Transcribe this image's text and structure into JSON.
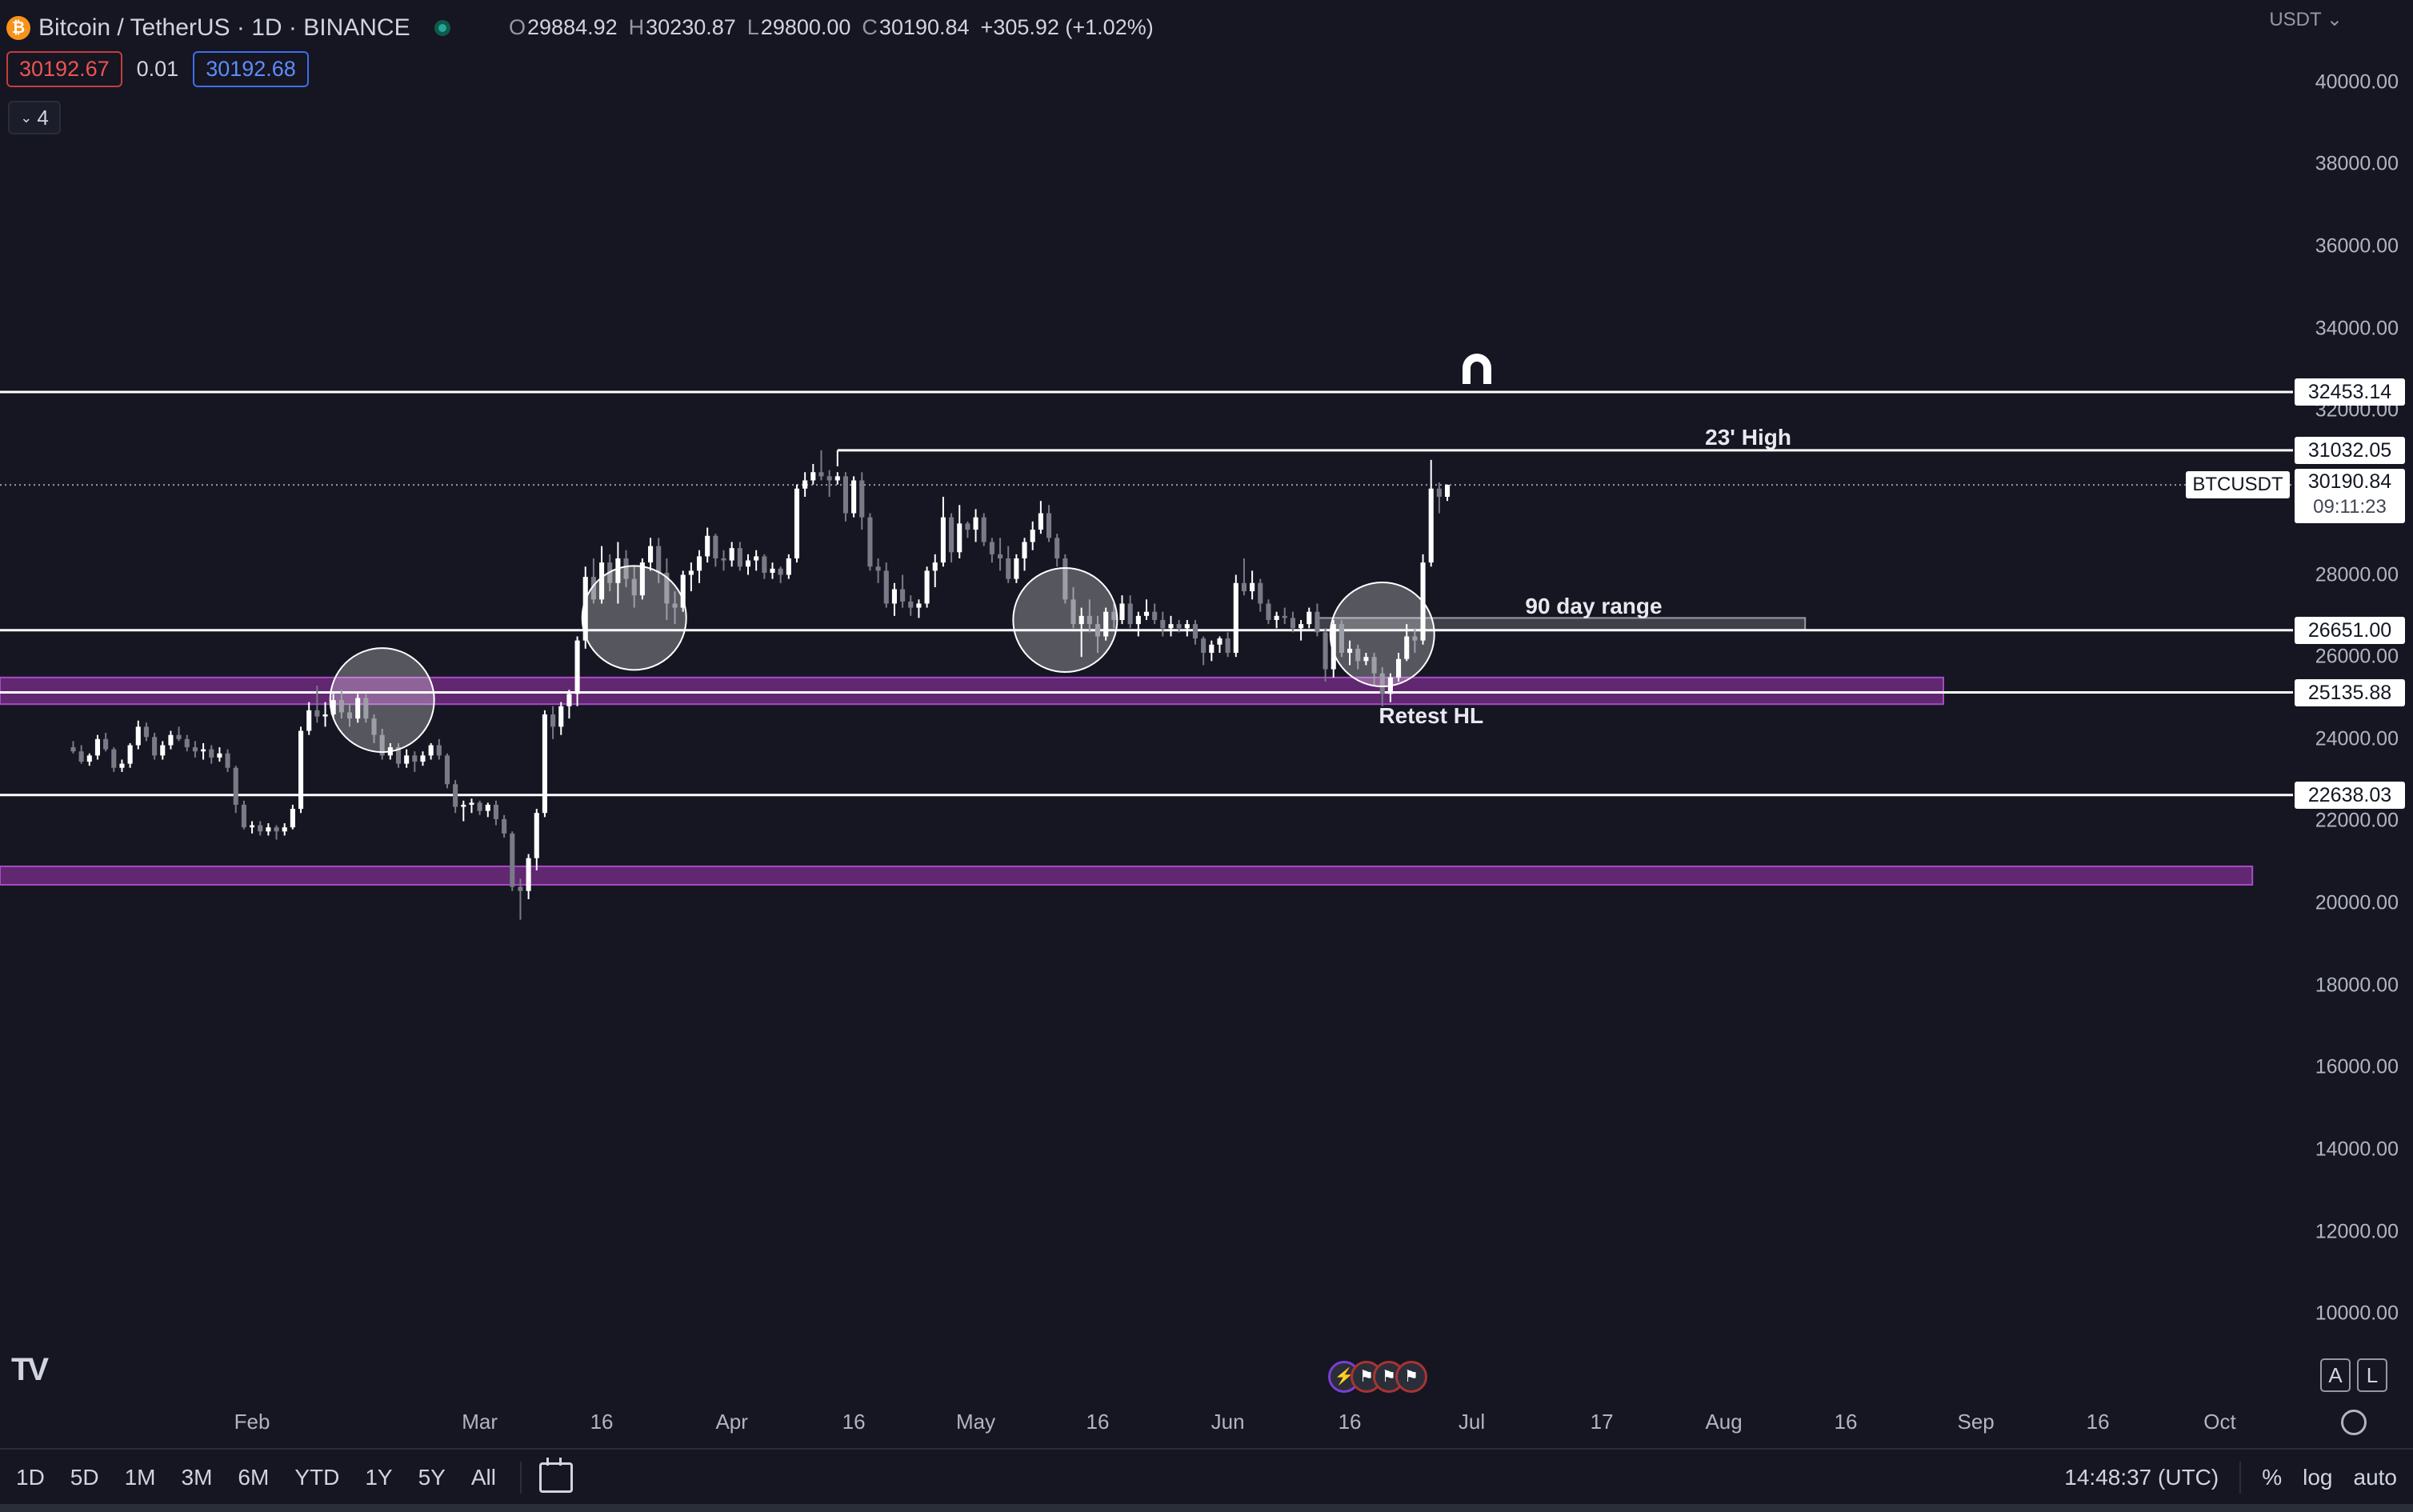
{
  "header": {
    "symbol_title": "Bitcoin / TetherUS · 1D · BINANCE",
    "coin_icon": "bitcoin-icon",
    "ohlc": [
      {
        "k": "O",
        "v": "29884.92"
      },
      {
        "k": "H",
        "v": "30230.87"
      },
      {
        "k": "L",
        "v": "29800.00"
      },
      {
        "k": "C",
        "v": "30190.84"
      }
    ],
    "change": "+305.92 (+1.02%)",
    "sell_price": "30192.67",
    "spread": "0.01",
    "buy_price": "30192.68",
    "indicators_count": "4",
    "currency": "USDT"
  },
  "chart_data": {
    "type": "candlestick",
    "symbol": "BTCUSDT",
    "ylim": [
      8000,
      42000
    ],
    "x_range": [
      "2023-01-01",
      "2023-10-10"
    ],
    "y_ticks": [
      40000,
      38000,
      36000,
      34000,
      32000,
      28000,
      26000,
      24000,
      22000,
      20000,
      18000,
      16000,
      14000,
      12000,
      10000
    ],
    "y_tick_labels": [
      "40000.00",
      "38000.00",
      "36000.00",
      "34000.00",
      "32000.00",
      "28000.00",
      "26000.00",
      "24000.00",
      "22000.00",
      "20000.00",
      "18000.00",
      "16000.00",
      "14000.00",
      "12000.00",
      "10000.00"
    ],
    "x_ticks": [
      {
        "date": "2023-02-01",
        "label": "Feb"
      },
      {
        "date": "2023-03-01",
        "label": "Mar"
      },
      {
        "date": "2023-03-16",
        "label": "16"
      },
      {
        "date": "2023-04-01",
        "label": "Apr"
      },
      {
        "date": "2023-04-16",
        "label": "16"
      },
      {
        "date": "2023-05-01",
        "label": "May"
      },
      {
        "date": "2023-05-16",
        "label": "16"
      },
      {
        "date": "2023-06-01",
        "label": "Jun"
      },
      {
        "date": "2023-06-16",
        "label": "16"
      },
      {
        "date": "2023-07-01",
        "label": "Jul"
      },
      {
        "date": "2023-07-17",
        "label": "17"
      },
      {
        "date": "2023-08-01",
        "label": "Aug"
      },
      {
        "date": "2023-08-16",
        "label": "16"
      },
      {
        "date": "2023-09-01",
        "label": "Sep"
      },
      {
        "date": "2023-09-16",
        "label": "16"
      },
      {
        "date": "2023-10-01",
        "label": "Oct"
      }
    ],
    "candles_start": "2023-01-10",
    "candles": [
      [
        23800,
        23950,
        23650,
        23700
      ],
      [
        23700,
        23850,
        23400,
        23450
      ],
      [
        23450,
        23650,
        23350,
        23600
      ],
      [
        23600,
        24100,
        23500,
        24000
      ],
      [
        24000,
        24150,
        23700,
        23750
      ],
      [
        23750,
        23800,
        23200,
        23300
      ],
      [
        23300,
        23500,
        23200,
        23400
      ],
      [
        23400,
        23900,
        23300,
        23850
      ],
      [
        23850,
        24450,
        23750,
        24300
      ],
      [
        24300,
        24400,
        23950,
        24050
      ],
      [
        24050,
        24150,
        23500,
        23600
      ],
      [
        23600,
        23950,
        23500,
        23850
      ],
      [
        23850,
        24200,
        23750,
        24100
      ],
      [
        24100,
        24300,
        23950,
        24000
      ],
      [
        24000,
        24100,
        23700,
        23800
      ],
      [
        23800,
        23950,
        23550,
        23700
      ],
      [
        23700,
        23900,
        23500,
        23750
      ],
      [
        23750,
        23850,
        23400,
        23550
      ],
      [
        23550,
        23800,
        23450,
        23650
      ],
      [
        23650,
        23750,
        23200,
        23300
      ],
      [
        23300,
        23350,
        22200,
        22400
      ],
      [
        22400,
        22500,
        21800,
        21850
      ],
      [
        21850,
        22000,
        21700,
        21900
      ],
      [
        21900,
        22000,
        21650,
        21750
      ],
      [
        21750,
        21950,
        21650,
        21850
      ],
      [
        21850,
        21900,
        21550,
        21750
      ],
      [
        21750,
        21950,
        21650,
        21850
      ],
      [
        21850,
        22400,
        21800,
        22300
      ],
      [
        22300,
        24300,
        22200,
        24200
      ],
      [
        24200,
        24900,
        24100,
        24700
      ],
      [
        24700,
        25300,
        24400,
        24550
      ],
      [
        24550,
        24900,
        24300,
        24600
      ],
      [
        24600,
        25100,
        24500,
        24950
      ],
      [
        24950,
        25200,
        24500,
        24650
      ],
      [
        24650,
        24850,
        24300,
        24500
      ],
      [
        24500,
        25100,
        24400,
        25000
      ],
      [
        25000,
        25100,
        24400,
        24500
      ],
      [
        24500,
        24600,
        23900,
        24100
      ],
      [
        24100,
        24250,
        23500,
        23600
      ],
      [
        23600,
        23900,
        23500,
        23800
      ],
      [
        23800,
        23900,
        23300,
        23400
      ],
      [
        23400,
        23750,
        23300,
        23600
      ],
      [
        23600,
        23700,
        23200,
        23450
      ],
      [
        23450,
        23700,
        23350,
        23600
      ],
      [
        23600,
        23900,
        23500,
        23850
      ],
      [
        23850,
        24000,
        23500,
        23600
      ],
      [
        23600,
        23650,
        22800,
        22900
      ],
      [
        22900,
        23000,
        22200,
        22350
      ],
      [
        22350,
        22500,
        22000,
        22400
      ],
      [
        22400,
        22550,
        22200,
        22450
      ],
      [
        22450,
        22500,
        22150,
        22250
      ],
      [
        22250,
        22450,
        22100,
        22400
      ],
      [
        22400,
        22500,
        21900,
        22050
      ],
      [
        22050,
        22150,
        21600,
        21700
      ],
      [
        21700,
        21750,
        20300,
        20400
      ],
      [
        20400,
        20600,
        19600,
        20300
      ],
      [
        20300,
        21200,
        20100,
        21100
      ],
      [
        21100,
        22300,
        20800,
        22200
      ],
      [
        22200,
        24700,
        22100,
        24600
      ],
      [
        24600,
        24800,
        24000,
        24300
      ],
      [
        24300,
        24900,
        24100,
        24800
      ],
      [
        24800,
        25200,
        24500,
        25100
      ],
      [
        25100,
        26500,
        24800,
        26400
      ],
      [
        26400,
        28200,
        26200,
        27950
      ],
      [
        27950,
        28400,
        27300,
        27400
      ],
      [
        27400,
        28700,
        27300,
        28300
      ],
      [
        28300,
        28500,
        27600,
        27800
      ],
      [
        27800,
        28800,
        27300,
        28400
      ],
      [
        28400,
        28600,
        27700,
        27900
      ],
      [
        27900,
        28200,
        27200,
        27500
      ],
      [
        27500,
        28400,
        27400,
        28300
      ],
      [
        28300,
        28900,
        28100,
        28700
      ],
      [
        28700,
        28900,
        27800,
        28050
      ],
      [
        28050,
        28400,
        26900,
        27300
      ],
      [
        27300,
        27600,
        26800,
        27200
      ],
      [
        27200,
        28100,
        27100,
        28000
      ],
      [
        28000,
        28300,
        27600,
        28100
      ],
      [
        28100,
        28600,
        27800,
        28450
      ],
      [
        28450,
        29150,
        28300,
        28950
      ],
      [
        28950,
        29000,
        28200,
        28400
      ],
      [
        28400,
        28600,
        28100,
        28350
      ],
      [
        28350,
        28800,
        28200,
        28650
      ],
      [
        28650,
        28800,
        28100,
        28200
      ],
      [
        28200,
        28500,
        28000,
        28350
      ],
      [
        28350,
        28600,
        28100,
        28450
      ],
      [
        28450,
        28500,
        27900,
        28050
      ],
      [
        28050,
        28300,
        27900,
        28150
      ],
      [
        28150,
        28200,
        27800,
        28000
      ],
      [
        28000,
        28500,
        27900,
        28400
      ],
      [
        28400,
        30200,
        28300,
        30100
      ],
      [
        30100,
        30500,
        29900,
        30300
      ],
      [
        30300,
        30700,
        30200,
        30500
      ],
      [
        30500,
        31032,
        30300,
        30400
      ],
      [
        30400,
        30550,
        29900,
        30300
      ],
      [
        30300,
        30500,
        30200,
        30400
      ],
      [
        30400,
        30500,
        29300,
        29500
      ],
      [
        29500,
        30400,
        29400,
        30300
      ],
      [
        30300,
        30500,
        29100,
        29400
      ],
      [
        29400,
        29500,
        28100,
        28200
      ],
      [
        28200,
        28400,
        27800,
        28100
      ],
      [
        28100,
        28300,
        27200,
        27300
      ],
      [
        27300,
        27800,
        27000,
        27650
      ],
      [
        27650,
        28000,
        27200,
        27350
      ],
      [
        27350,
        27500,
        27000,
        27200
      ],
      [
        27200,
        27400,
        26950,
        27300
      ],
      [
        27300,
        28200,
        27200,
        28100
      ],
      [
        28100,
        28500,
        27700,
        28300
      ],
      [
        28300,
        29900,
        28200,
        29400
      ],
      [
        29400,
        29500,
        28300,
        28550
      ],
      [
        28550,
        29700,
        28400,
        29250
      ],
      [
        29250,
        29300,
        28900,
        29100
      ],
      [
        29100,
        29600,
        28800,
        29400
      ],
      [
        29400,
        29500,
        28700,
        28800
      ],
      [
        28800,
        28900,
        28300,
        28500
      ],
      [
        28500,
        28900,
        28100,
        28400
      ],
      [
        28400,
        28700,
        27800,
        27900
      ],
      [
        27900,
        28500,
        27800,
        28400
      ],
      [
        28400,
        28900,
        28100,
        28800
      ],
      [
        28800,
        29300,
        28600,
        29100
      ],
      [
        29100,
        29800,
        29000,
        29500
      ],
      [
        29500,
        29700,
        28800,
        28900
      ],
      [
        28900,
        29000,
        28200,
        28400
      ],
      [
        28400,
        28500,
        27300,
        27400
      ],
      [
        27400,
        27700,
        26700,
        26800
      ],
      [
        26800,
        27200,
        26000,
        27000
      ],
      [
        27000,
        27400,
        26600,
        26800
      ],
      [
        26800,
        27000,
        26100,
        26500
      ],
      [
        26500,
        27200,
        26400,
        27100
      ],
      [
        27100,
        27300,
        26700,
        26900
      ],
      [
        26900,
        27500,
        26800,
        27300
      ],
      [
        27300,
        27500,
        26700,
        26800
      ],
      [
        26800,
        27100,
        26500,
        27000
      ],
      [
        27000,
        27400,
        26900,
        27100
      ],
      [
        27100,
        27300,
        26800,
        26900
      ],
      [
        26900,
        27100,
        26500,
        26700
      ],
      [
        26700,
        27000,
        26500,
        26800
      ],
      [
        26800,
        26900,
        26600,
        26700
      ],
      [
        26700,
        26900,
        26500,
        26800
      ],
      [
        26800,
        26900,
        26300,
        26450
      ],
      [
        26450,
        26500,
        25800,
        26100
      ],
      [
        26100,
        26400,
        25900,
        26300
      ],
      [
        26300,
        26500,
        26100,
        26450
      ],
      [
        26450,
        26600,
        26000,
        26100
      ],
      [
        26100,
        28000,
        26000,
        27800
      ],
      [
        27800,
        28400,
        27500,
        27600
      ],
      [
        27600,
        28100,
        27400,
        27800
      ],
      [
        27800,
        27900,
        27100,
        27300
      ],
      [
        27300,
        27400,
        26800,
        26900
      ],
      [
        26900,
        27100,
        26700,
        27000
      ],
      [
        27000,
        27200,
        26800,
        26950
      ],
      [
        26950,
        27100,
        26600,
        26700
      ],
      [
        26700,
        26900,
        26400,
        26800
      ],
      [
        26800,
        27200,
        26700,
        27100
      ],
      [
        27100,
        27300,
        26500,
        26600
      ],
      [
        26600,
        26700,
        25400,
        25700
      ],
      [
        25700,
        26900,
        25500,
        26800
      ],
      [
        26800,
        26900,
        26000,
        26100
      ],
      [
        26100,
        26400,
        25800,
        26200
      ],
      [
        26200,
        26300,
        25700,
        25900
      ],
      [
        25900,
        26100,
        25800,
        26000
      ],
      [
        26000,
        26100,
        25300,
        25600
      ],
      [
        25600,
        25750,
        24800,
        25100
      ],
      [
        25100,
        25600,
        24900,
        25500
      ],
      [
        25500,
        26100,
        25400,
        25950
      ],
      [
        25950,
        26800,
        25900,
        26500
      ],
      [
        26500,
        26700,
        26100,
        26400
      ],
      [
        26400,
        28500,
        26300,
        28300
      ],
      [
        28300,
        30800,
        28200,
        30100
      ],
      [
        30100,
        30250,
        29500,
        29900
      ],
      [
        29900,
        30200,
        29800,
        30190
      ]
    ],
    "hlines": [
      {
        "label": "32453.14",
        "value": 32453.14,
        "from": "2023-01-01"
      },
      {
        "label": "31032.05",
        "value": 31032.05,
        "from": "2023-04-14"
      },
      {
        "label": "26651.00",
        "value": 26651.0,
        "from": "2023-01-01"
      },
      {
        "label": "25135.88",
        "value": 25135.88,
        "from": "2023-01-01"
      },
      {
        "label": "22638.03",
        "value": 22638.03,
        "from": "2023-01-01"
      }
    ],
    "zones": [
      {
        "low": 24850,
        "high": 25500,
        "from": "2023-01-01",
        "to": "2023-08-28",
        "color": "#7b2d8c"
      },
      {
        "low": 20450,
        "high": 20900,
        "from": "2023-01-01",
        "to": "2023-10-05",
        "color": "#7b2d8c"
      }
    ],
    "range_box": {
      "low": 26650,
      "high": 26950,
      "from": "2023-06-12",
      "to": "2023-08-11"
    },
    "circles": [
      {
        "date": "2023-02-17",
        "value": 24950
      },
      {
        "date": "2023-03-20",
        "value": 26950
      },
      {
        "date": "2023-05-12",
        "value": 26900
      },
      {
        "date": "2023-06-20",
        "value": 26550
      }
    ],
    "annotations": [
      {
        "text": "23' High",
        "date": "2023-08-04",
        "value": 31300
      },
      {
        "text": "90 day range",
        "date": "2023-07-16",
        "value": 27200
      },
      {
        "text": "Retest HL",
        "date": "2023-06-26",
        "value": 24520
      }
    ],
    "last_price": 30190.84,
    "last_price_label": "30190.84",
    "countdown": "09:11:23",
    "symbol_tag": "BTCUSDT",
    "colors": {
      "bg": "#151622",
      "up": "#ffffff",
      "down": "#787b86",
      "line": "#ffffff",
      "zone": "#7b2d8c"
    }
  },
  "bottom": {
    "ranges": [
      "1D",
      "5D",
      "1M",
      "3M",
      "6M",
      "YTD",
      "1Y",
      "5Y",
      "All"
    ],
    "time": "14:48:37 (UTC)",
    "percent": "%",
    "log": "log",
    "auto": "auto"
  },
  "logo": "TV",
  "alert_a": "A",
  "alert_l": "L"
}
